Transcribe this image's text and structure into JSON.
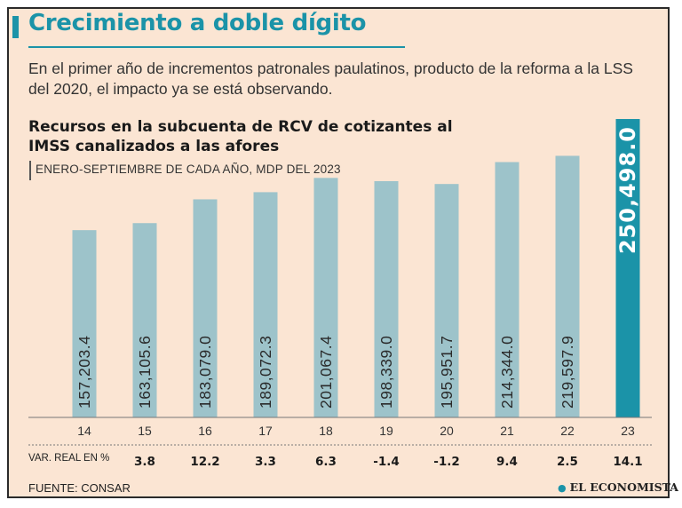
{
  "header": {
    "title": "Crecimiento a doble dígito",
    "intro": "En el primer año de incrementos patronales paulatinos, producto de la reforma a la LSS del 2020, el impacto ya se está observando."
  },
  "chart_data": {
    "type": "bar",
    "title": "Recursos en la subcuenta de RCV de cotizantes al IMSS canalizados a las afores",
    "subtitle": "ENERO-SEPTIEMBRE DE CADA AÑO, MDP DEL 2023",
    "categories": [
      "14",
      "15",
      "16",
      "17",
      "18",
      "19",
      "20",
      "21",
      "22",
      "23"
    ],
    "values": [
      157203.4,
      163105.6,
      183079.0,
      189072.3,
      201067.4,
      198339.0,
      195951.7,
      214344.0,
      219597.9,
      250498.0
    ],
    "value_labels": [
      "157,203.4",
      "163,105.6",
      "183,079.0",
      "189,072.3",
      "201,067.4",
      "198,339.0",
      "195,951.7",
      "214,344.0",
      "219,597.9",
      "250,498.0"
    ],
    "ylim": [
      0,
      252000
    ],
    "highlight_index": 9,
    "colors": {
      "bar": "#9dc3ca",
      "highlight": "#1b93a8",
      "label": "#2a2a2a",
      "highlight_label": "#ffffff"
    },
    "growth_label": "VAR. REAL EN %",
    "growth": [
      "3.8",
      "12.2",
      "3.3",
      "6.3",
      "-1.4",
      "-1.2",
      "9.4",
      "2.5",
      "14.1"
    ]
  },
  "footer": {
    "source": "FUENTE: CONSAR",
    "brand": "EL ECONOMISTA"
  }
}
